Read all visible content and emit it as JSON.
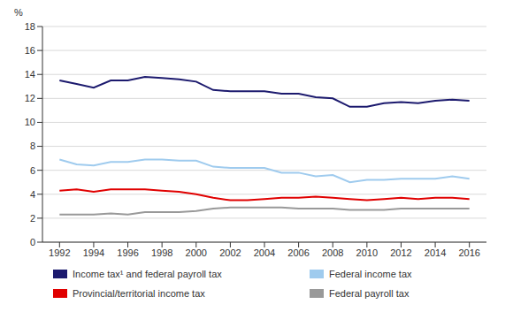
{
  "chart_data": {
    "type": "line",
    "y_label": "%",
    "x": [
      1992,
      1993,
      1994,
      1995,
      1996,
      1997,
      1998,
      1999,
      2000,
      2001,
      2002,
      2003,
      2004,
      2005,
      2006,
      2007,
      2008,
      2009,
      2010,
      2011,
      2012,
      2013,
      2014,
      2015,
      2016
    ],
    "xlim": [
      1991,
      2017
    ],
    "xticks": [
      1992,
      1994,
      1996,
      1998,
      2000,
      2002,
      2004,
      2006,
      2008,
      2010,
      2012,
      2014,
      2016
    ],
    "ylim": [
      0,
      18
    ],
    "yticks": [
      0,
      2,
      4,
      6,
      8,
      10,
      12,
      14,
      16,
      18
    ],
    "grid": true,
    "legend": "bottom",
    "series": [
      {
        "name": "Income tax¹ and federal payroll tax",
        "color": "#1c1a6e",
        "values": [
          13.5,
          13.2,
          12.9,
          13.5,
          13.5,
          13.8,
          13.7,
          13.6,
          13.4,
          12.7,
          12.6,
          12.6,
          12.6,
          12.4,
          12.4,
          12.1,
          12.0,
          11.3,
          11.3,
          11.6,
          11.7,
          11.6,
          11.8,
          11.9,
          11.8
        ]
      },
      {
        "name": "Federal income tax",
        "color": "#9fcbee",
        "values": [
          6.9,
          6.5,
          6.4,
          6.7,
          6.7,
          6.9,
          6.9,
          6.8,
          6.8,
          6.3,
          6.2,
          6.2,
          6.2,
          5.8,
          5.8,
          5.5,
          5.6,
          5.0,
          5.2,
          5.2,
          5.3,
          5.3,
          5.3,
          5.5,
          5.3
        ]
      },
      {
        "name": "Provincial/territorial income tax",
        "color": "#e00000",
        "values": [
          4.3,
          4.4,
          4.2,
          4.4,
          4.4,
          4.4,
          4.3,
          4.2,
          4.0,
          3.7,
          3.5,
          3.5,
          3.6,
          3.7,
          3.7,
          3.8,
          3.7,
          3.6,
          3.5,
          3.6,
          3.7,
          3.6,
          3.7,
          3.7,
          3.6
        ]
      },
      {
        "name": "Federal payroll tax",
        "color": "#999999",
        "values": [
          2.3,
          2.3,
          2.3,
          2.4,
          2.3,
          2.5,
          2.5,
          2.5,
          2.6,
          2.8,
          2.9,
          2.9,
          2.9,
          2.9,
          2.8,
          2.8,
          2.8,
          2.7,
          2.7,
          2.7,
          2.8,
          2.8,
          2.8,
          2.8,
          2.8
        ]
      }
    ]
  }
}
